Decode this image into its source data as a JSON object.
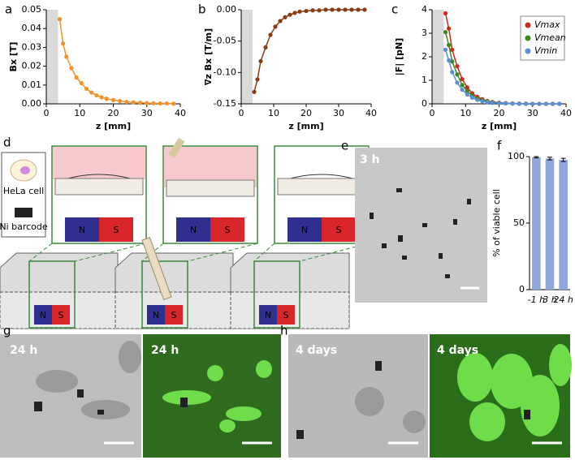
{
  "panel_labels": [
    "a",
    "b",
    "c",
    "d",
    "e",
    "f",
    "g",
    "h"
  ],
  "image_labels": [
    "3 h",
    "24 h",
    "24 h",
    "4 days",
    "4 days"
  ],
  "diagram": {
    "legend": [
      "HeLa cell",
      "Ni barcode"
    ],
    "north": "N",
    "south": "S"
  },
  "chart_data": [
    {
      "type": "line",
      "xlabel": "z [mm]",
      "ylabel": "Bx [T]",
      "x": [
        4,
        5,
        6,
        7.5,
        9,
        10.5,
        12,
        13.5,
        15,
        16.5,
        18,
        20,
        22,
        24,
        26,
        28,
        30,
        32,
        34,
        36,
        38
      ],
      "span": [
        0,
        3.5
      ],
      "series": [
        {
          "color": "#f0932b",
          "values": [
            0.045,
            0.032,
            0.025,
            0.019,
            0.014,
            0.011,
            0.008,
            0.006,
            0.0045,
            0.0035,
            0.0027,
            0.002,
            0.0015,
            0.001,
            0.0008,
            0.0006,
            0.0004,
            0.0003,
            0.0002,
            0.0002,
            0.0001
          ]
        }
      ],
      "xlim": [
        0,
        40
      ],
      "xticks": [
        0,
        10,
        20,
        30,
        40
      ],
      "ylim": [
        0,
        0.05
      ],
      "yticks": [
        {
          "value": 0,
          "label": "0.00"
        },
        {
          "value": 0.01,
          "label": "0.01"
        },
        {
          "value": 0.02,
          "label": "0.02"
        },
        {
          "value": 0.03,
          "label": "0.03"
        },
        {
          "value": 0.04,
          "label": "0.04"
        },
        {
          "value": 0.05,
          "label": "0.05"
        }
      ]
    },
    {
      "type": "line",
      "xlabel": "z [mm]",
      "ylabel": "∇z Bx [T/m]",
      "x": [
        4,
        5,
        6,
        7.5,
        9,
        10.5,
        12,
        13.5,
        15,
        16.5,
        18,
        20,
        22,
        24,
        26,
        28,
        30,
        32,
        34,
        36,
        38
      ],
      "span": [
        0,
        3.5
      ],
      "series": [
        {
          "color": "#8b3a12",
          "values": [
            -0.131,
            -0.111,
            -0.082,
            -0.06,
            -0.04,
            -0.027,
            -0.018,
            -0.012,
            -0.008,
            -0.005,
            -0.003,
            -0.002,
            -0.001,
            -0.001,
            0,
            0,
            0,
            0,
            0,
            0,
            0
          ]
        }
      ],
      "xlim": [
        0,
        40
      ],
      "xticks": [
        0,
        10,
        20,
        30,
        40
      ],
      "ylim": [
        -0.15,
        0
      ],
      "yticks": [
        {
          "value": -0.15,
          "label": "-0.15"
        },
        {
          "value": -0.1,
          "label": "-0.10"
        },
        {
          "value": -0.05,
          "label": "-0.05"
        },
        {
          "value": 0,
          "label": "0.00"
        }
      ]
    },
    {
      "type": "line",
      "xlabel": "z [mm]",
      "ylabel": "|F| [pN]",
      "legend": "top-right",
      "x": [
        4,
        5,
        6,
        7.5,
        9,
        10.5,
        12,
        13.5,
        15,
        16.5,
        18,
        20,
        22,
        24,
        26,
        28,
        30,
        32,
        34,
        36,
        38
      ],
      "span": [
        0,
        3.5
      ],
      "series": [
        {
          "name": "Vmax",
          "color": "#d0281c",
          "values": [
            3.85,
            3.2,
            2.3,
            1.6,
            1.05,
            0.7,
            0.45,
            0.3,
            0.2,
            0.12,
            0.08,
            0.05,
            0.03,
            0.02,
            0.01,
            0.01,
            0,
            0,
            0,
            0,
            0
          ]
        },
        {
          "name": "Vmean",
          "color": "#3a8a1e",
          "values": [
            3.05,
            2.5,
            1.8,
            1.25,
            0.8,
            0.55,
            0.35,
            0.23,
            0.15,
            0.1,
            0.06,
            0.04,
            0.02,
            0.01,
            0.01,
            0,
            0,
            0,
            0,
            0,
            0
          ]
        },
        {
          "name": "Vmin",
          "color": "#5b8ed6",
          "values": [
            2.3,
            1.85,
            1.35,
            0.9,
            0.6,
            0.4,
            0.26,
            0.17,
            0.11,
            0.07,
            0.04,
            0.03,
            0.02,
            0.01,
            0,
            0,
            0,
            0,
            0,
            0,
            0
          ]
        }
      ],
      "xlim": [
        0,
        40
      ],
      "xticks": [
        0,
        10,
        20,
        30,
        40
      ],
      "ylim": [
        0,
        4
      ],
      "yticks": [
        0,
        1,
        2,
        3,
        4
      ]
    },
    {
      "type": "bar",
      "ylabel": "% of viable cell",
      "color": "#8fa8dc",
      "categories": [
        "-1 h",
        "3 h",
        "24 h"
      ],
      "values": [
        99.5,
        98.5,
        97.5
      ],
      "errors": [
        0.5,
        1,
        1.2
      ],
      "ylim": [
        0,
        100
      ],
      "yticks": [
        0,
        50,
        100
      ]
    }
  ]
}
